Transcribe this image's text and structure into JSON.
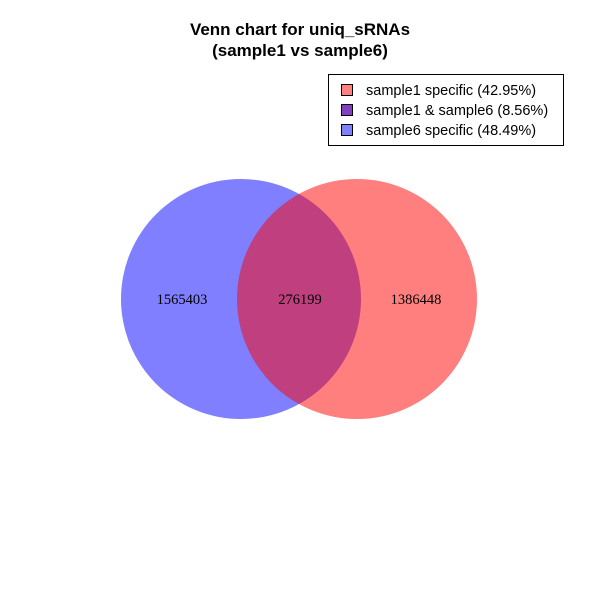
{
  "chart_data": {
    "type": "venn",
    "title": "Venn chart for uniq_sRNAs",
    "subtitle": "(sample1 vs sample6)",
    "legend_placement": "top-right",
    "legend": [
      {
        "label": "sample1 specific (42.95%)",
        "color": "#FF8080"
      },
      {
        "label": "sample1 & sample6 (8.56%)",
        "color": "#8040C0"
      },
      {
        "label": "sample6 specific (48.49%)",
        "color": "#8080FF"
      }
    ],
    "sets": [
      {
        "name": "sample1",
        "color": "#FF0000",
        "opacity": 0.5
      },
      {
        "name": "sample6",
        "color": "#0000FF",
        "opacity": 0.5
      }
    ],
    "regions": [
      {
        "sets": [
          "sample6"
        ],
        "label": "1565403",
        "value": 1565403
      },
      {
        "sets": [
          "sample1",
          "sample6"
        ],
        "label": "276199",
        "value": 276199
      },
      {
        "sets": [
          "sample1"
        ],
        "label": "1386448",
        "value": 1386448
      }
    ]
  }
}
